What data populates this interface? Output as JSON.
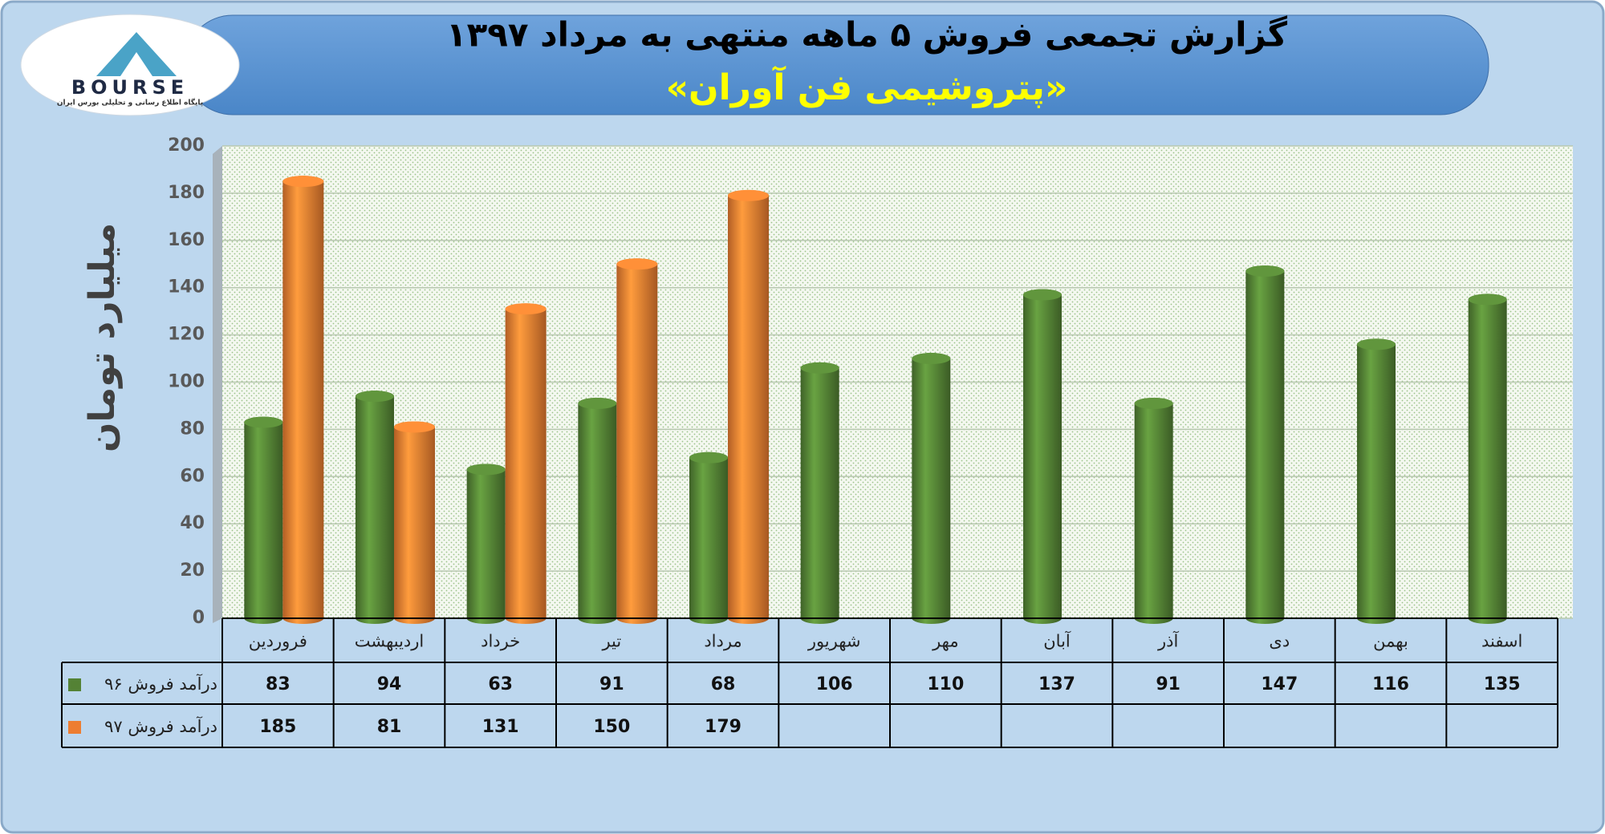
{
  "logo": {
    "name": "BOURSE",
    "tagline": "پایگاه اطلاع رسانی و تحلیلی بورس ایران"
  },
  "chart_data": {
    "type": "bar",
    "title": "گزارش تجمعی فروش ۵ ماهه منتهی به مرداد ۱۳۹۷",
    "subtitle": "«پتروشیمی فن آوران»",
    "y_label": "میلیارد تومان",
    "categories": [
      "فروردین",
      "اردیبهشت",
      "خرداد",
      "تیر",
      "مرداد",
      "شهریور",
      "مهر",
      "آبان",
      "آذر",
      "دی",
      "بهمن",
      "اسفند"
    ],
    "series": [
      {
        "name": "درآمد فروش ۹۶",
        "color": "#548235",
        "values": [
          83,
          94,
          63,
          91,
          68,
          106,
          110,
          137,
          91,
          147,
          116,
          135
        ]
      },
      {
        "name": "درآمد فروش ۹۷",
        "color": "#ed7d31",
        "values": [
          185,
          81,
          131,
          150,
          179,
          null,
          null,
          null,
          null,
          null,
          null,
          null
        ]
      }
    ],
    "ylim": [
      0,
      200
    ],
    "yticks": [
      0,
      20,
      40,
      60,
      80,
      100,
      120,
      140,
      160,
      180,
      200
    ],
    "grid": true
  }
}
